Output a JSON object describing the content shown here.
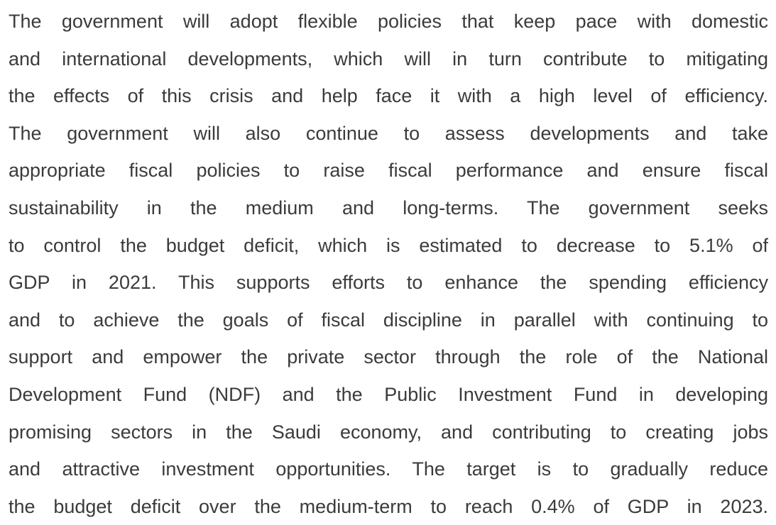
{
  "paragraph": {
    "lines": [
      "The government will adopt flexible policies that keep pace with domestic",
      "and international developments, which will in turn contribute to mitigating",
      "the effects of this crisis and help face it with a high level of efficiency.",
      "The government will also continue to assess developments and take",
      "appropriate fiscal policies to raise fiscal performance and ensure fiscal",
      "sustainability in the medium and long-terms. The government seeks",
      "to control the budget deficit, which is estimated to decrease to 5.1% of",
      "GDP in 2021. This supports efforts to enhance the spending efficiency",
      "and to achieve the goals of fiscal discipline in parallel with continuing to",
      "support and empower the private sector through the role of the National",
      "Development Fund (NDF) and the Public Investment Fund in developing",
      "promising sectors in the Saudi economy, and contributing to creating jobs",
      "and attractive investment opportunities. The target is to gradually reduce",
      "the budget deficit over the medium-term to reach 0.4% of GDP in 2023."
    ]
  }
}
